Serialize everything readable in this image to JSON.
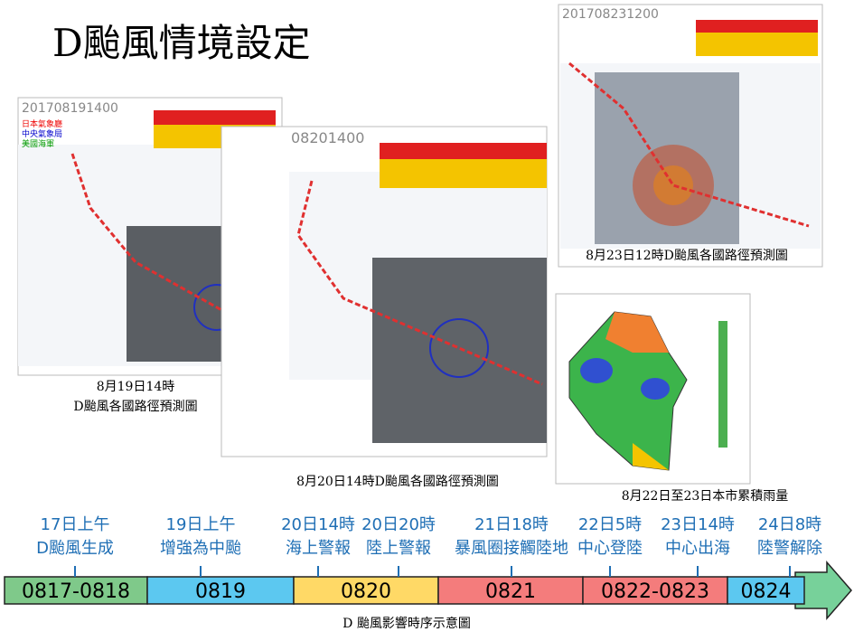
{
  "title": "D颱風情境設定",
  "figures": [
    {
      "timestamp": "201708191400",
      "agencies": [
        "日本氣象廳",
        "中央氣象局",
        "美國海軍"
      ],
      "caption": [
        "8月19日14時",
        "D颱風各國路徑預測圖"
      ]
    },
    {
      "timestamp": "08201400",
      "caption": "8月20日14時D颱風各國路徑預測圖"
    },
    {
      "timestamp": "201708231200",
      "caption": "8月23日12時D颱風各國路徑預測圖"
    },
    {
      "caption": "8月22日至23日本市累積雨量"
    }
  ],
  "timeline": {
    "events": [
      {
        "time": "17日上午",
        "label": "D颱風生成"
      },
      {
        "time": "19日上午",
        "label": "增強為中颱"
      },
      {
        "time": "20日14時",
        "label": "海上警報"
      },
      {
        "time": "20日20時",
        "label": "陸上警報"
      },
      {
        "time": "21日18時",
        "label": "暴風圈接觸陸地"
      },
      {
        "time": "22日5時",
        "label": "中心登陸"
      },
      {
        "time": "23日14時",
        "label": "中心出海"
      },
      {
        "time": "24日8時",
        "label": "陸警解除"
      }
    ],
    "segments": [
      "0817-0818",
      "0819",
      "0820",
      "0821",
      "0822-0823",
      "0824"
    ],
    "caption": "D 颱風影響時序示意圖"
  }
}
